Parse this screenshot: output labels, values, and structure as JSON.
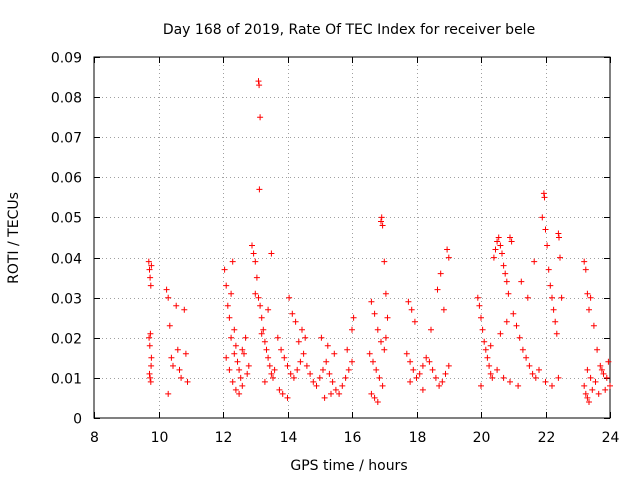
{
  "chart_data": {
    "type": "scatter",
    "title": "Day 168 of 2019, Rate Of TEC Index for receiver bele",
    "xlabel": "GPS time / hours",
    "ylabel": "ROTI / TECUs",
    "xlim": [
      8,
      24
    ],
    "ylim": [
      0,
      0.09
    ],
    "xticks": [
      8,
      10,
      12,
      14,
      16,
      18,
      20,
      22,
      24
    ],
    "xtick_labels": [
      "8",
      "10",
      "12",
      "14",
      "16",
      "18",
      "20",
      "22",
      "24"
    ],
    "yticks": [
      0,
      0.01,
      0.02,
      0.03,
      0.04,
      0.05,
      0.06,
      0.07,
      0.08,
      0.09
    ],
    "ytick_labels": [
      "0",
      "0.01",
      "0.02",
      "0.03",
      "0.04",
      "0.05",
      "0.06",
      "0.07",
      "0.08",
      "0.09"
    ],
    "grid": true,
    "marker": "+",
    "color": "#ff0000",
    "series": [
      {
        "name": "ROTI",
        "points": [
          [
            9.7,
            0.039
          ],
          [
            9.72,
            0.037
          ],
          [
            9.74,
            0.035
          ],
          [
            9.76,
            0.033
          ],
          [
            9.78,
            0.038
          ],
          [
            9.71,
            0.02
          ],
          [
            9.73,
            0.018
          ],
          [
            9.75,
            0.021
          ],
          [
            9.77,
            0.013
          ],
          [
            9.72,
            0.011
          ],
          [
            9.74,
            0.01
          ],
          [
            9.76,
            0.009
          ],
          [
            9.78,
            0.015
          ],
          [
            10.25,
            0.032
          ],
          [
            10.3,
            0.03
          ],
          [
            10.35,
            0.023
          ],
          [
            10.4,
            0.015
          ],
          [
            10.45,
            0.013
          ],
          [
            10.3,
            0.006
          ],
          [
            10.55,
            0.028
          ],
          [
            10.6,
            0.017
          ],
          [
            10.65,
            0.012
          ],
          [
            10.7,
            0.01
          ],
          [
            10.8,
            0.027
          ],
          [
            10.85,
            0.016
          ],
          [
            10.9,
            0.009
          ],
          [
            12.05,
            0.037
          ],
          [
            12.1,
            0.033
          ],
          [
            12.15,
            0.028
          ],
          [
            12.2,
            0.025
          ],
          [
            12.25,
            0.031
          ],
          [
            12.3,
            0.039
          ],
          [
            12.35,
            0.022
          ],
          [
            12.4,
            0.018
          ],
          [
            12.45,
            0.014
          ],
          [
            12.5,
            0.012
          ],
          [
            12.55,
            0.01
          ],
          [
            12.6,
            0.008
          ],
          [
            12.65,
            0.016
          ],
          [
            12.7,
            0.02
          ],
          [
            12.75,
            0.011
          ],
          [
            12.8,
            0.013
          ],
          [
            12.1,
            0.015
          ],
          [
            12.2,
            0.012
          ],
          [
            12.3,
            0.009
          ],
          [
            12.4,
            0.007
          ],
          [
            12.5,
            0.006
          ],
          [
            12.6,
            0.017
          ],
          [
            12.25,
            0.02
          ],
          [
            12.35,
            0.016
          ],
          [
            12.9,
            0.043
          ],
          [
            12.95,
            0.041
          ],
          [
            13.0,
            0.039
          ],
          [
            13.05,
            0.035
          ],
          [
            13.1,
            0.03
          ],
          [
            13.15,
            0.028
          ],
          [
            13.2,
            0.025
          ],
          [
            13.25,
            0.022
          ],
          [
            13.3,
            0.019
          ],
          [
            13.35,
            0.017
          ],
          [
            13.4,
            0.015
          ],
          [
            13.45,
            0.013
          ],
          [
            13.5,
            0.011
          ],
          [
            13.55,
            0.01
          ],
          [
            13.6,
            0.012
          ],
          [
            13.1,
            0.084
          ],
          [
            13.12,
            0.083
          ],
          [
            13.15,
            0.075
          ],
          [
            13.13,
            0.057
          ],
          [
            13.0,
            0.031
          ],
          [
            13.2,
            0.021
          ],
          [
            13.4,
            0.027
          ],
          [
            13.5,
            0.041
          ],
          [
            13.3,
            0.009
          ],
          [
            13.7,
            0.02
          ],
          [
            13.8,
            0.017
          ],
          [
            13.9,
            0.015
          ],
          [
            14.0,
            0.013
          ],
          [
            14.1,
            0.011
          ],
          [
            14.2,
            0.01
          ],
          [
            14.3,
            0.012
          ],
          [
            14.4,
            0.014
          ],
          [
            14.5,
            0.016
          ],
          [
            14.6,
            0.013
          ],
          [
            14.7,
            0.011
          ],
          [
            14.8,
            0.009
          ],
          [
            14.9,
            0.008
          ],
          [
            14.05,
            0.03
          ],
          [
            14.15,
            0.026
          ],
          [
            14.25,
            0.024
          ],
          [
            14.35,
            0.019
          ],
          [
            14.45,
            0.022
          ],
          [
            14.55,
            0.02
          ],
          [
            13.75,
            0.007
          ],
          [
            13.85,
            0.006
          ],
          [
            14.0,
            0.005
          ],
          [
            15.0,
            0.01
          ],
          [
            15.1,
            0.012
          ],
          [
            15.2,
            0.014
          ],
          [
            15.3,
            0.011
          ],
          [
            15.4,
            0.009
          ],
          [
            15.5,
            0.007
          ],
          [
            15.6,
            0.006
          ],
          [
            15.7,
            0.008
          ],
          [
            15.8,
            0.01
          ],
          [
            15.9,
            0.012
          ],
          [
            16.0,
            0.014
          ],
          [
            15.05,
            0.02
          ],
          [
            15.25,
            0.018
          ],
          [
            15.45,
            0.016
          ],
          [
            15.85,
            0.017
          ],
          [
            16.05,
            0.025
          ],
          [
            16.0,
            0.022
          ],
          [
            15.15,
            0.005
          ],
          [
            15.35,
            0.006
          ],
          [
            16.6,
            0.029
          ],
          [
            16.7,
            0.026
          ],
          [
            16.8,
            0.022
          ],
          [
            16.9,
            0.019
          ],
          [
            17.0,
            0.017
          ],
          [
            16.65,
            0.014
          ],
          [
            16.75,
            0.012
          ],
          [
            16.85,
            0.01
          ],
          [
            16.95,
            0.008
          ],
          [
            16.6,
            0.006
          ],
          [
            16.7,
            0.005
          ],
          [
            16.8,
            0.004
          ],
          [
            16.9,
            0.049
          ],
          [
            16.95,
            0.048
          ],
          [
            16.92,
            0.05
          ],
          [
            17.0,
            0.039
          ],
          [
            17.05,
            0.031
          ],
          [
            17.1,
            0.025
          ],
          [
            16.55,
            0.016
          ],
          [
            17.05,
            0.02
          ],
          [
            17.7,
            0.016
          ],
          [
            17.8,
            0.014
          ],
          [
            17.9,
            0.012
          ],
          [
            18.0,
            0.01
          ],
          [
            18.1,
            0.011
          ],
          [
            18.2,
            0.013
          ],
          [
            18.3,
            0.015
          ],
          [
            18.4,
            0.014
          ],
          [
            18.5,
            0.012
          ],
          [
            18.6,
            0.01
          ],
          [
            18.7,
            0.008
          ],
          [
            18.8,
            0.009
          ],
          [
            18.9,
            0.011
          ],
          [
            19.0,
            0.013
          ],
          [
            17.75,
            0.029
          ],
          [
            17.85,
            0.027
          ],
          [
            17.95,
            0.024
          ],
          [
            18.45,
            0.022
          ],
          [
            18.65,
            0.032
          ],
          [
            18.75,
            0.036
          ],
          [
            18.85,
            0.027
          ],
          [
            18.95,
            0.042
          ],
          [
            19.0,
            0.04
          ],
          [
            17.8,
            0.009
          ],
          [
            18.2,
            0.007
          ],
          [
            19.9,
            0.03
          ],
          [
            19.95,
            0.028
          ],
          [
            20.0,
            0.025
          ],
          [
            20.05,
            0.022
          ],
          [
            20.1,
            0.019
          ],
          [
            20.15,
            0.017
          ],
          [
            20.2,
            0.015
          ],
          [
            20.25,
            0.013
          ],
          [
            20.3,
            0.011
          ],
          [
            20.35,
            0.01
          ],
          [
            20.4,
            0.04
          ],
          [
            20.45,
            0.042
          ],
          [
            20.5,
            0.044
          ],
          [
            20.55,
            0.045
          ],
          [
            20.6,
            0.043
          ],
          [
            20.65,
            0.041
          ],
          [
            20.7,
            0.038
          ],
          [
            20.75,
            0.036
          ],
          [
            20.8,
            0.034
          ],
          [
            20.85,
            0.031
          ],
          [
            20.9,
            0.045
          ],
          [
            20.95,
            0.044
          ],
          [
            20.5,
            0.012
          ],
          [
            20.7,
            0.01
          ],
          [
            20.9,
            0.009
          ],
          [
            20.0,
            0.008
          ],
          [
            20.3,
            0.018
          ],
          [
            20.6,
            0.021
          ],
          [
            20.8,
            0.024
          ],
          [
            21.0,
            0.026
          ],
          [
            21.1,
            0.023
          ],
          [
            21.2,
            0.02
          ],
          [
            21.3,
            0.017
          ],
          [
            21.4,
            0.015
          ],
          [
            21.5,
            0.013
          ],
          [
            21.6,
            0.011
          ],
          [
            21.7,
            0.01
          ],
          [
            21.8,
            0.012
          ],
          [
            21.9,
            0.05
          ],
          [
            21.95,
            0.056
          ],
          [
            21.97,
            0.055
          ],
          [
            22.0,
            0.047
          ],
          [
            22.05,
            0.043
          ],
          [
            22.1,
            0.037
          ],
          [
            22.15,
            0.033
          ],
          [
            22.2,
            0.03
          ],
          [
            22.25,
            0.027
          ],
          [
            22.3,
            0.024
          ],
          [
            22.35,
            0.021
          ],
          [
            22.4,
            0.046
          ],
          [
            22.42,
            0.045
          ],
          [
            22.45,
            0.04
          ],
          [
            22.5,
            0.03
          ],
          [
            21.25,
            0.034
          ],
          [
            21.45,
            0.03
          ],
          [
            21.65,
            0.039
          ],
          [
            22.0,
            0.009
          ],
          [
            22.2,
            0.008
          ],
          [
            22.4,
            0.01
          ],
          [
            21.15,
            0.008
          ],
          [
            23.2,
            0.039
          ],
          [
            23.25,
            0.037
          ],
          [
            23.3,
            0.031
          ],
          [
            23.35,
            0.027
          ],
          [
            23.4,
            0.03
          ],
          [
            23.5,
            0.023
          ],
          [
            23.6,
            0.017
          ],
          [
            23.7,
            0.013
          ],
          [
            23.8,
            0.011
          ],
          [
            23.9,
            0.01
          ],
          [
            24.0,
            0.008
          ],
          [
            23.2,
            0.008
          ],
          [
            23.25,
            0.006
          ],
          [
            23.3,
            0.005
          ],
          [
            23.35,
            0.004
          ],
          [
            23.45,
            0.007
          ],
          [
            23.55,
            0.009
          ],
          [
            23.65,
            0.006
          ],
          [
            23.75,
            0.012
          ],
          [
            23.85,
            0.007
          ],
          [
            23.95,
            0.014
          ],
          [
            23.3,
            0.012
          ],
          [
            23.4,
            0.01
          ]
        ]
      }
    ]
  }
}
